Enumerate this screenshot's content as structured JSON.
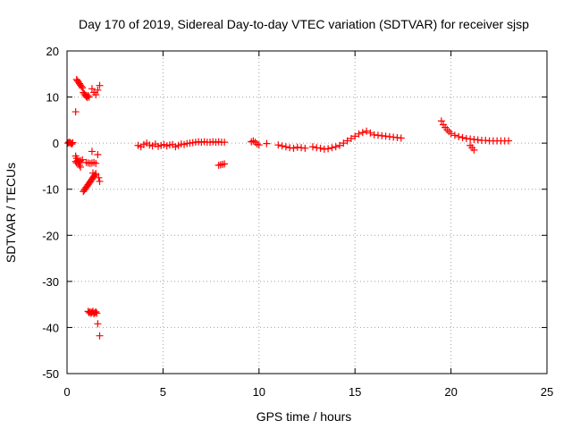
{
  "chart_data": {
    "type": "scatter",
    "title": "Day 170 of 2019, Sidereal Day-to-day VTEC variation (SDTVAR) for receiver sjsp",
    "xlabel": "GPS time / hours",
    "ylabel": "SDTVAR / TECUs",
    "xlim": [
      0,
      25
    ],
    "ylim": [
      -50,
      20
    ],
    "xticks": [
      0,
      5,
      10,
      15,
      20,
      25
    ],
    "yticks": [
      -50,
      -40,
      -30,
      -20,
      -10,
      0,
      10,
      20
    ],
    "xtick_labels": [
      "0",
      "5",
      "10",
      "15",
      "20",
      "25"
    ],
    "ytick_labels": [
      "-50",
      "-40",
      "-30",
      "-20",
      "-10",
      "0",
      "10",
      "20"
    ],
    "grid": true,
    "marker": "+",
    "color": "#ff0000",
    "series": [
      {
        "name": "SDTVAR",
        "x": [
          0.05,
          0.1,
          0.15,
          0.2,
          0.25,
          0.3,
          0.45,
          0.5,
          0.55,
          0.6,
          0.65,
          0.7,
          0.75,
          0.8,
          0.85,
          0.9,
          0.95,
          1.0,
          1.05,
          1.1,
          1.15,
          1.3,
          1.4,
          1.5,
          1.6,
          1.7,
          0.45,
          0.5,
          0.55,
          0.6,
          0.65,
          0.7,
          0.45,
          0.5,
          0.6,
          0.7,
          0.8,
          0.85,
          0.9,
          0.95,
          1.0,
          1.05,
          1.1,
          1.15,
          1.2,
          1.25,
          1.3,
          1.35,
          1.4,
          1.45,
          1.5,
          1.0,
          1.1,
          1.2,
          1.3,
          1.4,
          1.5,
          1.6,
          1.65,
          1.7,
          1.3,
          1.35,
          1.1,
          1.15,
          1.2,
          1.25,
          1.3,
          1.35,
          1.4,
          1.45,
          1.5,
          1.55,
          1.6,
          1.7,
          3.7,
          3.85,
          4.0,
          4.15,
          4.3,
          4.45,
          4.6,
          4.75,
          4.9,
          5.05,
          5.2,
          5.35,
          5.5,
          5.65,
          5.8,
          5.95,
          6.1,
          6.25,
          6.4,
          6.55,
          6.7,
          6.85,
          7.0,
          7.15,
          7.3,
          7.45,
          7.6,
          7.75,
          7.9,
          8.05,
          8.2,
          7.9,
          8.0,
          8.1,
          8.2,
          9.6,
          9.7,
          9.8,
          9.9,
          10.0,
          10.4,
          11.0,
          11.2,
          11.4,
          11.6,
          11.8,
          12.0,
          12.2,
          12.4,
          12.8,
          13.0,
          13.2,
          13.4,
          13.6,
          13.8,
          14.0,
          14.2,
          14.4,
          14.6,
          14.8,
          15.0,
          15.2,
          15.4,
          15.6,
          15.8,
          16.0,
          16.2,
          16.4,
          16.6,
          16.8,
          17.0,
          17.2,
          17.4,
          19.5,
          19.6,
          19.7,
          19.8,
          19.9,
          20.0,
          20.2,
          20.4,
          20.6,
          20.8,
          21.0,
          21.2,
          21.4,
          21.6,
          21.8,
          22.0,
          22.2,
          22.4,
          22.6,
          22.8,
          23.0,
          21.0,
          21.1,
          21.2
        ],
        "y": [
          0.0,
          0.2,
          0.1,
          0.0,
          -0.2,
          0.1,
          6.8,
          13.8,
          13.5,
          13.2,
          12.9,
          12.6,
          12.3,
          12.0,
          11.0,
          10.7,
          10.4,
          10.1,
          9.9,
          10.3,
          10.0,
          11.8,
          11.0,
          10.5,
          11.5,
          12.5,
          -2.8,
          -3.3,
          -3.8,
          -4.3,
          -4.8,
          -5.2,
          -4.0,
          -4.3,
          -4.0,
          -3.8,
          -3.6,
          -10.5,
          -10.2,
          -9.9,
          -9.6,
          -9.3,
          -9.0,
          -8.7,
          -8.4,
          -8.1,
          -7.8,
          -7.5,
          -7.2,
          -6.9,
          -6.6,
          -4.2,
          -4.3,
          -4.4,
          -4.3,
          -4.2,
          -4.4,
          -2.5,
          -7.5,
          -8.3,
          -1.8,
          -6.5,
          -36.5,
          -36.8,
          -36.6,
          -36.9,
          -36.7,
          -36.5,
          -37.0,
          -36.8,
          -36.6,
          -36.9,
          -39.2,
          -41.8,
          -0.5,
          -0.8,
          -0.3,
          0.0,
          -0.4,
          -0.6,
          -0.2,
          -0.7,
          -0.5,
          -0.3,
          -0.6,
          -0.4,
          -0.3,
          -0.8,
          -0.5,
          -0.2,
          -0.3,
          -0.1,
          0.0,
          0.1,
          0.2,
          0.3,
          0.2,
          0.3,
          0.2,
          0.2,
          0.3,
          0.2,
          0.3,
          0.2,
          0.2,
          -4.8,
          -4.7,
          -4.6,
          -4.5,
          0.3,
          0.5,
          0.2,
          -0.2,
          -0.4,
          -0.1,
          -0.4,
          -0.6,
          -0.8,
          -1.0,
          -1.1,
          -0.9,
          -1.0,
          -1.1,
          -0.8,
          -1.0,
          -1.1,
          -1.3,
          -1.2,
          -1.0,
          -0.8,
          -0.5,
          0.0,
          0.5,
          1.0,
          1.5,
          2.0,
          2.3,
          2.6,
          2.2,
          1.8,
          1.7,
          1.6,
          1.5,
          1.4,
          1.3,
          1.2,
          1.1,
          4.8,
          4.0,
          3.4,
          2.9,
          2.5,
          2.1,
          1.7,
          1.4,
          1.2,
          1.0,
          0.9,
          0.8,
          0.7,
          0.6,
          0.6,
          0.5,
          0.5,
          0.5,
          0.5,
          0.5,
          0.5,
          -0.5,
          -1.0,
          -1.5
        ]
      }
    ]
  }
}
